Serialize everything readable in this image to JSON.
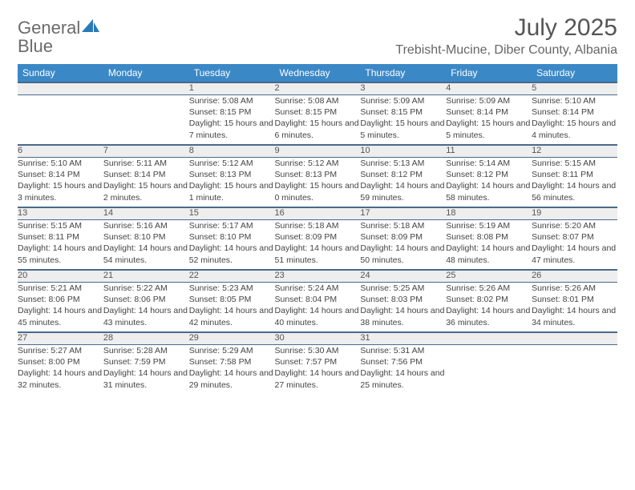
{
  "logo": {
    "word1": "General",
    "word2": "Blue"
  },
  "title": "July 2025",
  "location": "Trebisht-Mucine, Diber County, Albania",
  "colors": {
    "header_bg": "#3b88c7",
    "header_text": "#ffffff",
    "daynum_bg": "#eeeeee",
    "divider": "#3b88c7",
    "title_color": "#555555",
    "location_color": "#666666",
    "logo_gray": "#6b6b6b",
    "logo_blue": "#2a7ab9"
  },
  "day_headers": [
    "Sunday",
    "Monday",
    "Tuesday",
    "Wednesday",
    "Thursday",
    "Friday",
    "Saturday"
  ],
  "weeks": [
    {
      "nums": [
        "",
        "",
        "1",
        "2",
        "3",
        "4",
        "5"
      ],
      "cells": [
        null,
        null,
        {
          "sunrise": "5:08 AM",
          "sunset": "8:15 PM",
          "daylight": "15 hours and 7 minutes."
        },
        {
          "sunrise": "5:08 AM",
          "sunset": "8:15 PM",
          "daylight": "15 hours and 6 minutes."
        },
        {
          "sunrise": "5:09 AM",
          "sunset": "8:15 PM",
          "daylight": "15 hours and 5 minutes."
        },
        {
          "sunrise": "5:09 AM",
          "sunset": "8:14 PM",
          "daylight": "15 hours and 5 minutes."
        },
        {
          "sunrise": "5:10 AM",
          "sunset": "8:14 PM",
          "daylight": "15 hours and 4 minutes."
        }
      ]
    },
    {
      "nums": [
        "6",
        "7",
        "8",
        "9",
        "10",
        "11",
        "12"
      ],
      "cells": [
        {
          "sunrise": "5:10 AM",
          "sunset": "8:14 PM",
          "daylight": "15 hours and 3 minutes."
        },
        {
          "sunrise": "5:11 AM",
          "sunset": "8:14 PM",
          "daylight": "15 hours and 2 minutes."
        },
        {
          "sunrise": "5:12 AM",
          "sunset": "8:13 PM",
          "daylight": "15 hours and 1 minute."
        },
        {
          "sunrise": "5:12 AM",
          "sunset": "8:13 PM",
          "daylight": "15 hours and 0 minutes."
        },
        {
          "sunrise": "5:13 AM",
          "sunset": "8:12 PM",
          "daylight": "14 hours and 59 minutes."
        },
        {
          "sunrise": "5:14 AM",
          "sunset": "8:12 PM",
          "daylight": "14 hours and 58 minutes."
        },
        {
          "sunrise": "5:15 AM",
          "sunset": "8:11 PM",
          "daylight": "14 hours and 56 minutes."
        }
      ]
    },
    {
      "nums": [
        "13",
        "14",
        "15",
        "16",
        "17",
        "18",
        "19"
      ],
      "cells": [
        {
          "sunrise": "5:15 AM",
          "sunset": "8:11 PM",
          "daylight": "14 hours and 55 minutes."
        },
        {
          "sunrise": "5:16 AM",
          "sunset": "8:10 PM",
          "daylight": "14 hours and 54 minutes."
        },
        {
          "sunrise": "5:17 AM",
          "sunset": "8:10 PM",
          "daylight": "14 hours and 52 minutes."
        },
        {
          "sunrise": "5:18 AM",
          "sunset": "8:09 PM",
          "daylight": "14 hours and 51 minutes."
        },
        {
          "sunrise": "5:18 AM",
          "sunset": "8:09 PM",
          "daylight": "14 hours and 50 minutes."
        },
        {
          "sunrise": "5:19 AM",
          "sunset": "8:08 PM",
          "daylight": "14 hours and 48 minutes."
        },
        {
          "sunrise": "5:20 AM",
          "sunset": "8:07 PM",
          "daylight": "14 hours and 47 minutes."
        }
      ]
    },
    {
      "nums": [
        "20",
        "21",
        "22",
        "23",
        "24",
        "25",
        "26"
      ],
      "cells": [
        {
          "sunrise": "5:21 AM",
          "sunset": "8:06 PM",
          "daylight": "14 hours and 45 minutes."
        },
        {
          "sunrise": "5:22 AM",
          "sunset": "8:06 PM",
          "daylight": "14 hours and 43 minutes."
        },
        {
          "sunrise": "5:23 AM",
          "sunset": "8:05 PM",
          "daylight": "14 hours and 42 minutes."
        },
        {
          "sunrise": "5:24 AM",
          "sunset": "8:04 PM",
          "daylight": "14 hours and 40 minutes."
        },
        {
          "sunrise": "5:25 AM",
          "sunset": "8:03 PM",
          "daylight": "14 hours and 38 minutes."
        },
        {
          "sunrise": "5:26 AM",
          "sunset": "8:02 PM",
          "daylight": "14 hours and 36 minutes."
        },
        {
          "sunrise": "5:26 AM",
          "sunset": "8:01 PM",
          "daylight": "14 hours and 34 minutes."
        }
      ]
    },
    {
      "nums": [
        "27",
        "28",
        "29",
        "30",
        "31",
        "",
        ""
      ],
      "cells": [
        {
          "sunrise": "5:27 AM",
          "sunset": "8:00 PM",
          "daylight": "14 hours and 32 minutes."
        },
        {
          "sunrise": "5:28 AM",
          "sunset": "7:59 PM",
          "daylight": "14 hours and 31 minutes."
        },
        {
          "sunrise": "5:29 AM",
          "sunset": "7:58 PM",
          "daylight": "14 hours and 29 minutes."
        },
        {
          "sunrise": "5:30 AM",
          "sunset": "7:57 PM",
          "daylight": "14 hours and 27 minutes."
        },
        {
          "sunrise": "5:31 AM",
          "sunset": "7:56 PM",
          "daylight": "14 hours and 25 minutes."
        },
        null,
        null
      ]
    }
  ],
  "labels": {
    "sunrise": "Sunrise: ",
    "sunset": "Sunset: ",
    "daylight": "Daylight: "
  }
}
